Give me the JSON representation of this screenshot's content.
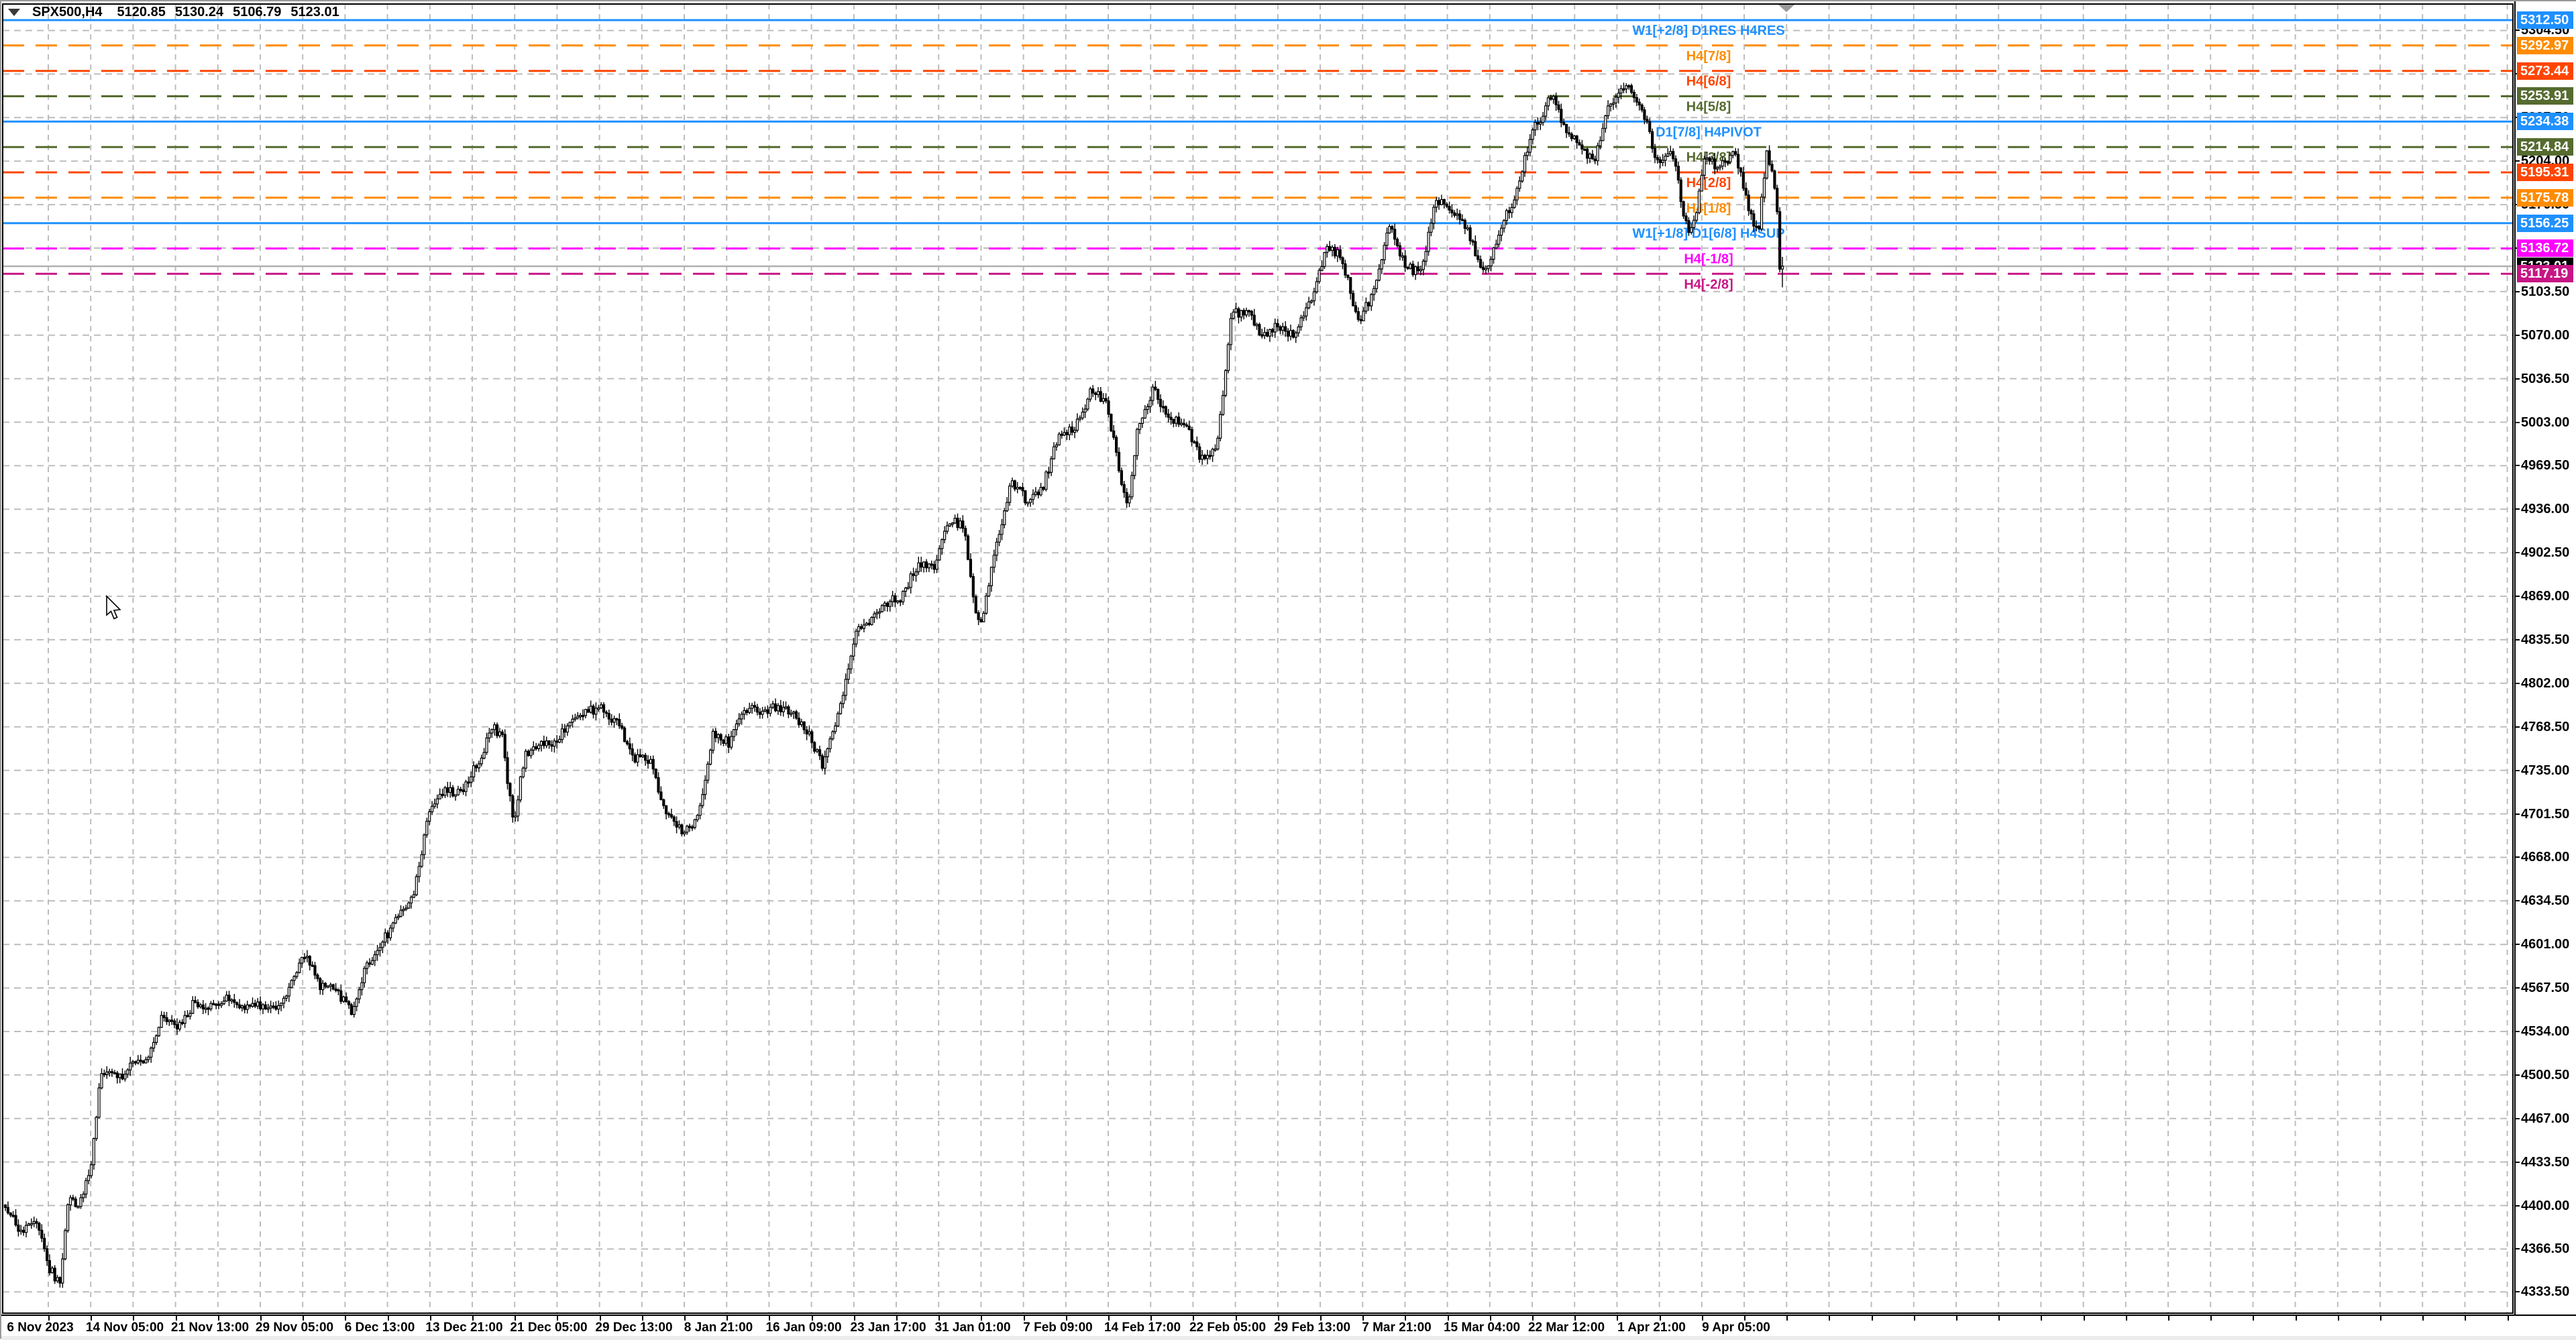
{
  "header": {
    "symbol_period": "SPX500,H4",
    "open": "5120.85",
    "high": "5130.24",
    "low": "5106.79",
    "close": "5123.01"
  },
  "chart_data": {
    "type": "candlestick",
    "title": "SPX500,H4",
    "symbol": "SPX500",
    "timeframe": "H4",
    "last_ohlc": {
      "open": 5120.85,
      "high": 5130.24,
      "low": 5106.79,
      "close": 5123.01
    },
    "ylim": [
      4316,
      5326
    ],
    "grid": true,
    "x_labels": [
      "6 Nov 2023",
      "14 Nov 05:00",
      "21 Nov 13:00",
      "29 Nov 05:00",
      "6 Dec 13:00",
      "13 Dec 21:00",
      "21 Dec 05:00",
      "29 Dec 13:00",
      "8 Jan 21:00",
      "16 Jan 09:00",
      "23 Jan 17:00",
      "31 Jan 01:00",
      "7 Feb 09:00",
      "14 Feb 17:00",
      "22 Feb 05:00",
      "29 Feb 13:00",
      "7 Mar 21:00",
      "15 Mar 04:00",
      "22 Mar 12:00",
      "1 Apr 21:00",
      "9 Apr 05:00"
    ],
    "y_ticks": [
      "5304.50",
      "5271.00",
      "5237.50",
      "5204.00",
      "5170.50",
      "5137.00",
      "5103.50",
      "5070.00",
      "5036.50",
      "5003.00",
      "4969.50",
      "4936.00",
      "4902.50",
      "4869.00",
      "4835.50",
      "4802.00",
      "4768.50",
      "4735.00",
      "4701.50",
      "4668.00",
      "4634.50",
      "4601.00",
      "4567.50",
      "4534.00",
      "4500.50",
      "4467.00",
      "4433.50",
      "4400.00",
      "4366.50",
      "4333.50"
    ],
    "levels": [
      {
        "price": 5312.5,
        "axis_label": "5312.50",
        "text": "W1[+2/8] D1RES H4RES",
        "color": "#1e90ff",
        "style": "solid"
      },
      {
        "price": 5292.97,
        "axis_label": "5292.97",
        "text": "H4[7/8]",
        "color": "#ff8c00",
        "style": "dash"
      },
      {
        "price": 5273.44,
        "axis_label": "5273.44",
        "text": "H4[6/8]",
        "color": "#ff4500",
        "style": "dash"
      },
      {
        "price": 5253.91,
        "axis_label": "5253.91",
        "text": "H4[5/8]",
        "color": "#556b2f",
        "style": "dash"
      },
      {
        "price": 5234.38,
        "axis_label": "5234.38",
        "text": "D1[7/8] H4PIVOT",
        "color": "#1e90ff",
        "style": "solid"
      },
      {
        "price": 5214.84,
        "axis_label": "5214.84",
        "text": "H4[3/8]",
        "color": "#556b2f",
        "style": "dash"
      },
      {
        "price": 5195.31,
        "axis_label": "5195.31",
        "text": "H4[2/8]",
        "color": "#ff4500",
        "style": "dash"
      },
      {
        "price": 5175.78,
        "axis_label": "5175.78",
        "text": "H4[1/8]",
        "color": "#ff8c00",
        "style": "dash"
      },
      {
        "price": 5156.25,
        "axis_label": "5156.25",
        "text": "W1[+1/8] D1[6/8] H4SUP",
        "color": "#1e90ff",
        "style": "solid"
      },
      {
        "price": 5136.72,
        "axis_label": "5136.72",
        "text": "H4[-1/8]",
        "color": "#ff00ff",
        "style": "dash"
      },
      {
        "price": 5117.19,
        "axis_label": "5117.19",
        "text": "H4[-2/8]",
        "color": "#c71585",
        "style": "dash"
      }
    ],
    "bid": {
      "price": 5123.01,
      "axis_label": "5123.01",
      "line_color": "#b0b0b0",
      "label_bg": "#000000"
    },
    "bar_count": 684,
    "days_span": 113,
    "price_path": [
      [
        0,
        4398
      ],
      [
        1,
        4380
      ],
      [
        2,
        4390
      ],
      [
        2.8,
        4352
      ],
      [
        3.5,
        4337
      ],
      [
        4,
        4408
      ],
      [
        4.6,
        4395
      ],
      [
        5,
        4412
      ],
      [
        5.5,
        4432
      ],
      [
        6,
        4498
      ],
      [
        7,
        4502
      ],
      [
        7.5,
        4495
      ],
      [
        8,
        4508
      ],
      [
        9,
        4512
      ],
      [
        10,
        4547
      ],
      [
        10.5,
        4540
      ],
      [
        11,
        4538
      ],
      [
        12,
        4556
      ],
      [
        13,
        4553
      ],
      [
        14,
        4559
      ],
      [
        15,
        4550
      ],
      [
        16,
        4554
      ],
      [
        17,
        4550
      ],
      [
        18,
        4567
      ],
      [
        19,
        4594
      ],
      [
        19.5,
        4585
      ],
      [
        20,
        4569
      ],
      [
        21,
        4567
      ],
      [
        22,
        4549
      ],
      [
        23,
        4585
      ],
      [
        24,
        4604
      ],
      [
        25,
        4622
      ],
      [
        26,
        4643
      ],
      [
        27,
        4707
      ],
      [
        28,
        4719
      ],
      [
        29,
        4719
      ],
      [
        30,
        4740
      ],
      [
        31,
        4768
      ],
      [
        31.6,
        4760
      ],
      [
        32.3,
        4692
      ],
      [
        33,
        4746
      ],
      [
        34,
        4754
      ],
      [
        35,
        4758
      ],
      [
        36,
        4774
      ],
      [
        37,
        4781
      ],
      [
        38,
        4783
      ],
      [
        39,
        4769
      ],
      [
        40,
        4745
      ],
      [
        41,
        4742
      ],
      [
        42,
        4704
      ],
      [
        43,
        4688
      ],
      [
        44,
        4697
      ],
      [
        45,
        4763
      ],
      [
        46,
        4756
      ],
      [
        47,
        4783
      ],
      [
        48,
        4780
      ],
      [
        49,
        4783
      ],
      [
        50,
        4780
      ],
      [
        51,
        4765
      ],
      [
        52,
        4739
      ],
      [
        53,
        4780
      ],
      [
        54,
        4839
      ],
      [
        55,
        4850
      ],
      [
        56,
        4864
      ],
      [
        57,
        4868
      ],
      [
        58,
        4894
      ],
      [
        59,
        4890
      ],
      [
        60,
        4927
      ],
      [
        61,
        4924
      ],
      [
        61.6,
        4860
      ],
      [
        62,
        4845
      ],
      [
        63,
        4906
      ],
      [
        64,
        4958
      ],
      [
        65,
        4942
      ],
      [
        66,
        4954
      ],
      [
        67,
        4995
      ],
      [
        68,
        4997
      ],
      [
        69,
        5026
      ],
      [
        70,
        5021
      ],
      [
        71,
        4953
      ],
      [
        71.4,
        4935
      ],
      [
        72,
        5000
      ],
      [
        73,
        5029
      ],
      [
        74,
        5005
      ],
      [
        75,
        5003
      ],
      [
        76,
        4975
      ],
      [
        77,
        4981
      ],
      [
        78,
        5087
      ],
      [
        79,
        5088
      ],
      [
        80,
        5069
      ],
      [
        81,
        5078
      ],
      [
        82,
        5069
      ],
      [
        83,
        5096
      ],
      [
        84,
        5137
      ],
      [
        85,
        5130
      ],
      [
        86,
        5078
      ],
      [
        87,
        5104
      ],
      [
        88,
        5157
      ],
      [
        89,
        5123
      ],
      [
        90,
        5117
      ],
      [
        91,
        5175
      ],
      [
        92,
        5165
      ],
      [
        93,
        5150
      ],
      [
        94,
        5117
      ],
      [
        95,
        5149
      ],
      [
        96,
        5178
      ],
      [
        97,
        5224
      ],
      [
        98,
        5246
      ],
      [
        98.4,
        5257
      ],
      [
        99,
        5232
      ],
      [
        100,
        5218
      ],
      [
        101,
        5203
      ],
      [
        102,
        5248
      ],
      [
        103,
        5264
      ],
      [
        103.5,
        5256
      ],
      [
        104,
        5248
      ],
      [
        105,
        5205
      ],
      [
        106,
        5211
      ],
      [
        107,
        5147
      ],
      [
        107.5,
        5160
      ],
      [
        108,
        5204
      ],
      [
        109,
        5200
      ],
      [
        110,
        5212
      ],
      [
        111,
        5160
      ],
      [
        111.5,
        5152
      ],
      [
        112,
        5211
      ],
      [
        112.4,
        5195
      ],
      [
        113,
        5123
      ]
    ]
  },
  "colors": {
    "background": "#ffffff",
    "grid": "#bdbdbd",
    "border": "#000000",
    "bull": "#ffffff",
    "bear": "#000000",
    "outline": "#000000",
    "shift_marker": "#9a9a9a",
    "axis_text": "#000000"
  }
}
